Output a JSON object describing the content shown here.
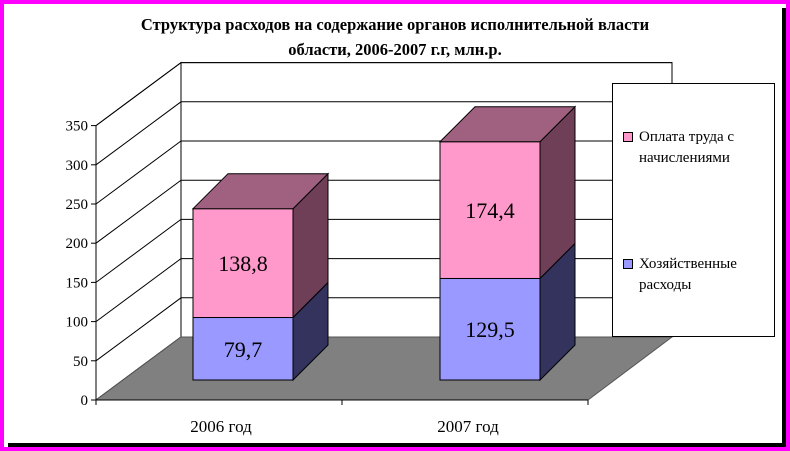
{
  "chart_data": {
    "type": "bar",
    "stacked": true,
    "three_d": true,
    "title_lines": [
      "Структура расходов на содержание органов исполнительной власти",
      "области, 2006-2007 г.г, млн.р."
    ],
    "categories": [
      "2006 год",
      "2007 год"
    ],
    "series": [
      {
        "name": "Хозяйственные расходы",
        "values": [
          79.7,
          129.5
        ],
        "labels": [
          "79,7",
          "129,5"
        ],
        "front_color": "#9999ff",
        "top_color": "#7b7bd8",
        "side_color": "#33335e"
      },
      {
        "name": "Оплата труда с начислениями",
        "values": [
          138.8,
          174.4
        ],
        "labels": [
          "138,8",
          "174,4"
        ],
        "front_color": "#ff99cc",
        "top_color": "#a0607f",
        "side_color": "#6e3f57"
      }
    ],
    "y_ticks": [
      "0",
      "50",
      "100",
      "150",
      "200",
      "250",
      "300",
      "350"
    ],
    "ylim": [
      0,
      350
    ],
    "grid": true,
    "legend_position": "right",
    "legend_order": [
      "Оплата труда с начислениями",
      "Хозяйственные расходы"
    ],
    "frame_color": "#ff00ff",
    "floor_color": "#808080"
  }
}
